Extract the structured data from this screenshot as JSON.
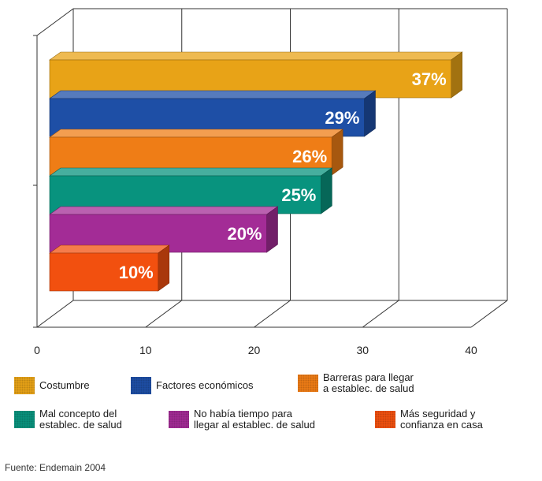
{
  "chart_data": {
    "type": "bar",
    "orientation": "horizontal",
    "three_d": true,
    "categories": [
      "Costumbre",
      "Factores económicos",
      "Barreras para llegar\na establec. de salud",
      "Mal concepto del\nestablec. de salud",
      "No había tiempo para\nllegar al establec. de salud",
      "Más seguridad y\nconfianza en casa"
    ],
    "values": [
      37,
      29,
      26,
      25,
      20,
      10
    ],
    "value_labels": [
      "37%",
      "29%",
      "26%",
      "25%",
      "20%",
      "10%"
    ],
    "colors": [
      "#e8a317",
      "#1e4fa6",
      "#ef7d16",
      "#08937e",
      "#a32c96",
      "#f2500f"
    ],
    "xlim": [
      0,
      40
    ],
    "x_ticks": [
      "0",
      "10",
      "20",
      "30",
      "40"
    ],
    "grid": true,
    "legend_position": "bottom"
  },
  "source": "Fuente: Endemain 2004"
}
